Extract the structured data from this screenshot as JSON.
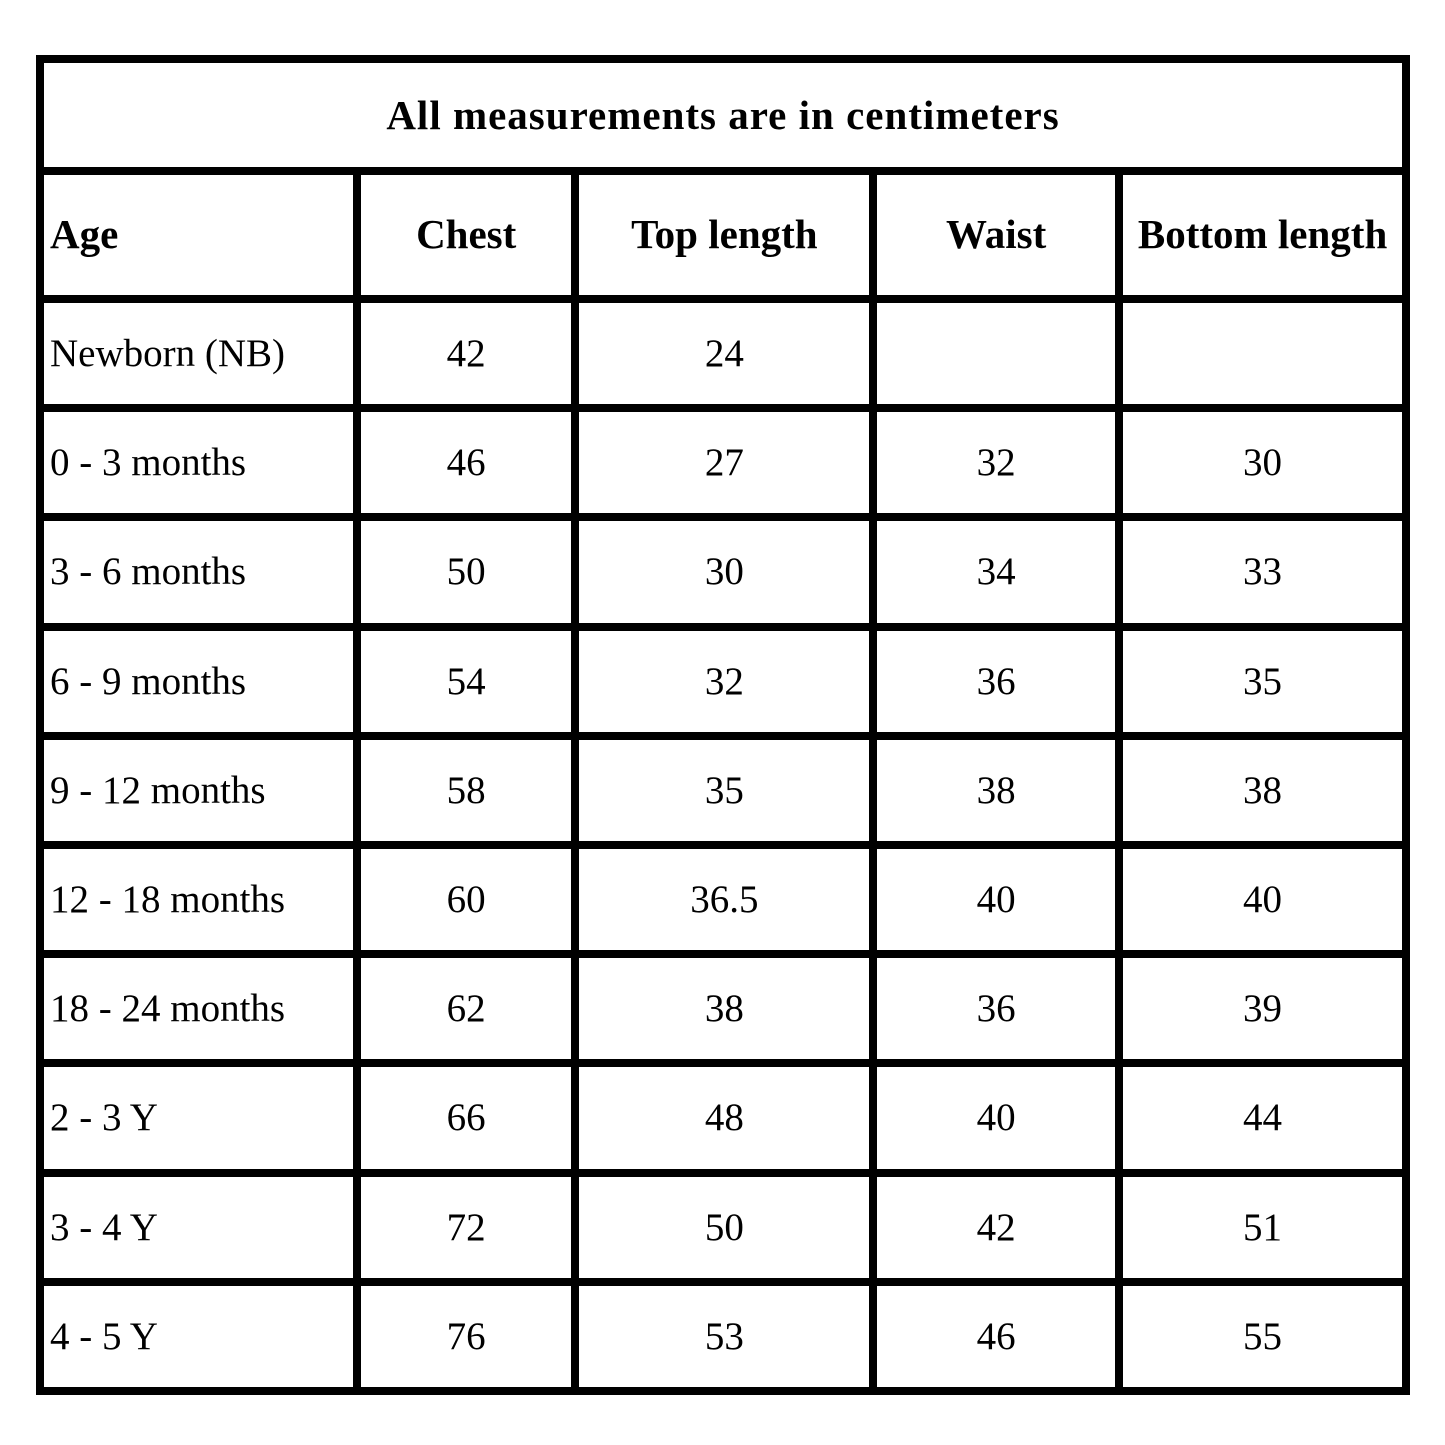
{
  "chart_data": {
    "type": "table",
    "title": "All measurements are in centimeters",
    "columns": [
      "Age",
      "Chest",
      "Top length",
      "Waist",
      "Bottom length"
    ],
    "rows": [
      [
        "Newborn (NB)",
        "42",
        "24",
        "",
        ""
      ],
      [
        "0 - 3 months",
        "46",
        "27",
        "32",
        "30"
      ],
      [
        "3 - 6 months",
        "50",
        "30",
        "34",
        "33"
      ],
      [
        "6 - 9 months",
        "54",
        "32",
        "36",
        "35"
      ],
      [
        "9 - 12 months",
        "58",
        "35",
        "38",
        "38"
      ],
      [
        "12 - 18 months",
        "60",
        "36.5",
        "40",
        "40"
      ],
      [
        "18 - 24 months",
        "62",
        "38",
        "36",
        "39"
      ],
      [
        "2 - 3 Y",
        "66",
        "48",
        "40",
        "44"
      ],
      [
        "3 - 4 Y",
        "72",
        "50",
        "42",
        "51"
      ],
      [
        "4 - 5 Y",
        "76",
        "53",
        "46",
        "55"
      ]
    ],
    "layout": {
      "grid": true,
      "border_color": "#000000",
      "background_color": "#ffffff",
      "title_position": "top-spanning-row",
      "column_width_percents": [
        23.2,
        16.0,
        21.8,
        18.0,
        21.0
      ]
    }
  }
}
